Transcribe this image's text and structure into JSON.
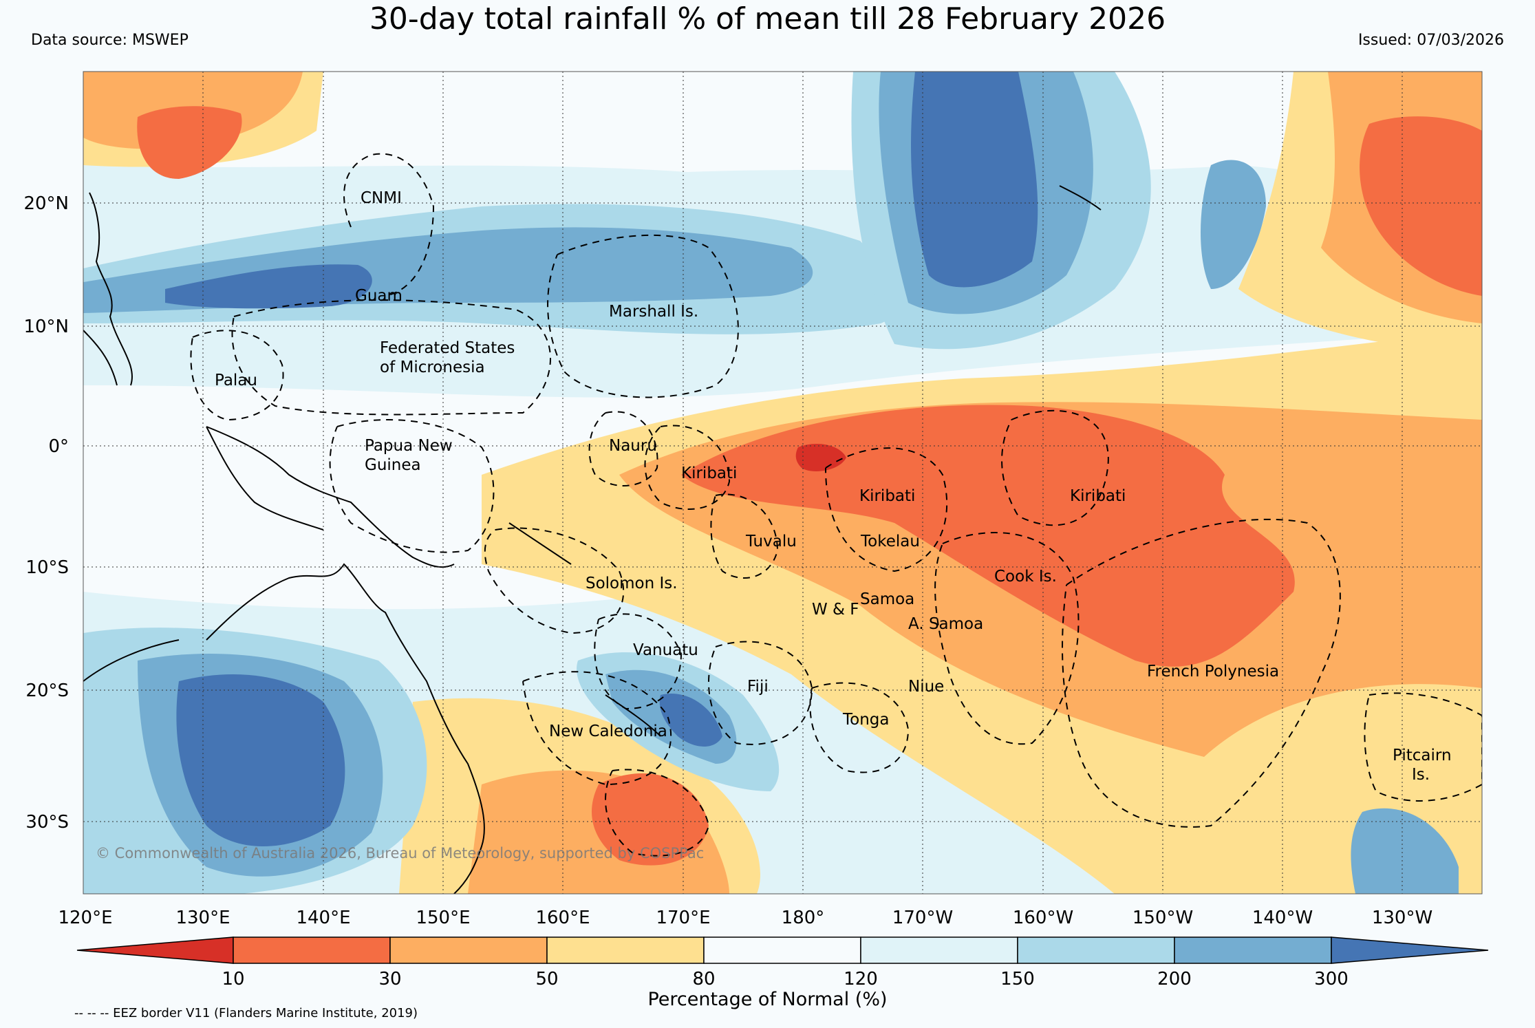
{
  "title": "30-day total rainfall % of mean till 28 February 2026",
  "data_source": "Data source: MSWEP",
  "issued": "Issued: 07/03/2026",
  "copyright": "© Commonwealth of Australia 2026, Bureau of Meteorology, supported by COSPPac",
  "eez_note": "-- -- -- EEZ border V11 (Flanders Marine Institute, 2019)",
  "colorbar": {
    "title": "Percentage of Normal (%)",
    "ticks": [
      "10",
      "30",
      "50",
      "80",
      "120",
      "150",
      "200",
      "300"
    ],
    "colors": {
      "lt10": "#d73027",
      "c10_30": "#f46d43",
      "c30_50": "#fdae61",
      "c50_80": "#fee090",
      "c80_120": "#f7fbfd",
      "c120_150": "#e0f3f8",
      "c150_200": "#abd9e9",
      "c200_300": "#74add1",
      "gt300": "#4575b4"
    }
  },
  "axes": {
    "lon_labels": [
      "120°E",
      "130°E",
      "140°E",
      "150°E",
      "160°E",
      "170°E",
      "180°",
      "170°W",
      "160°W",
      "150°W",
      "140°W",
      "130°W"
    ],
    "lat_labels": [
      "20°N",
      "10°N",
      "0°",
      "10°S",
      "20°S",
      "30°S"
    ]
  },
  "regions": {
    "cnmi": "CNMI",
    "guam": "Guam",
    "marshall": "Marshall Is.",
    "fsm_line1": "Federated States",
    "fsm_line2": "of Micronesia",
    "palau": "Palau",
    "png_line1": "Papua New",
    "png_line2": "Guinea",
    "nauru": "Nauru",
    "kiribati_west": "Kiribati",
    "kiribati_central": "Kiribati",
    "kiribati_east": "Kiribati",
    "tuvalu": "Tuvalu",
    "tokelau": "Tokelau",
    "cook": "Cook Is.",
    "solomon": "Solomon Is.",
    "samoa": "Samoa",
    "wf": "W & F",
    "american_samoa": "A. Samoa",
    "vanuatu": "Vanuatu",
    "fiji": "Fiji",
    "niue": "Niue",
    "tonga": "Tonga",
    "french_polynesia": "French Polynesia",
    "new_caledonia": "New Caledonia",
    "pitcairn_line1": "Pitcairn",
    "pitcairn_line2": "Is."
  }
}
